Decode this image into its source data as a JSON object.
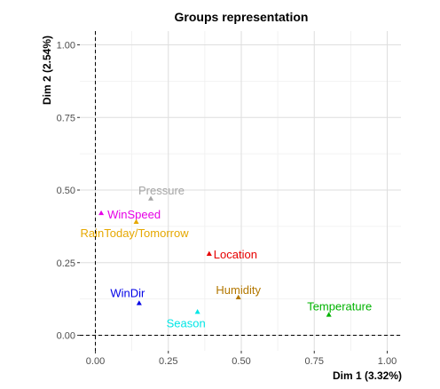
{
  "chart_data": {
    "type": "scatter",
    "title": "Groups representation",
    "xlabel": "Dim 1 (3.32%)",
    "ylabel": "Dim 2 (2.54%)",
    "xlim": [
      -0.05,
      1.05
    ],
    "ylim": [
      -0.04,
      1.04
    ],
    "xticks": [
      "0.00",
      "0.25",
      "0.50",
      "0.75",
      "1.00"
    ],
    "yticks": [
      "0.00",
      "0.25",
      "0.50",
      "0.75",
      "1.00"
    ],
    "grid": true,
    "reference_lines": {
      "x": 0,
      "y": 0,
      "style": "dashed"
    },
    "points": [
      {
        "label": "Pressure",
        "x": 0.19,
        "y": 0.47,
        "color": "#a6a6a6"
      },
      {
        "label": "WinSpeed",
        "x": 0.02,
        "y": 0.42,
        "color": "#e600e6"
      },
      {
        "label": "RainToday/Tomorrow",
        "x": 0.14,
        "y": 0.39,
        "color": "#e6a800"
      },
      {
        "label": "Location",
        "x": 0.39,
        "y": 0.28,
        "color": "#e60000"
      },
      {
        "label": "Humidity",
        "x": 0.49,
        "y": 0.13,
        "color": "#b37700"
      },
      {
        "label": "WinDir",
        "x": 0.15,
        "y": 0.11,
        "color": "#0000e6"
      },
      {
        "label": "Season",
        "x": 0.35,
        "y": 0.08,
        "color": "#00e6e6"
      },
      {
        "label": "Temperature",
        "x": 0.8,
        "y": 0.07,
        "color": "#00b300"
      }
    ]
  }
}
